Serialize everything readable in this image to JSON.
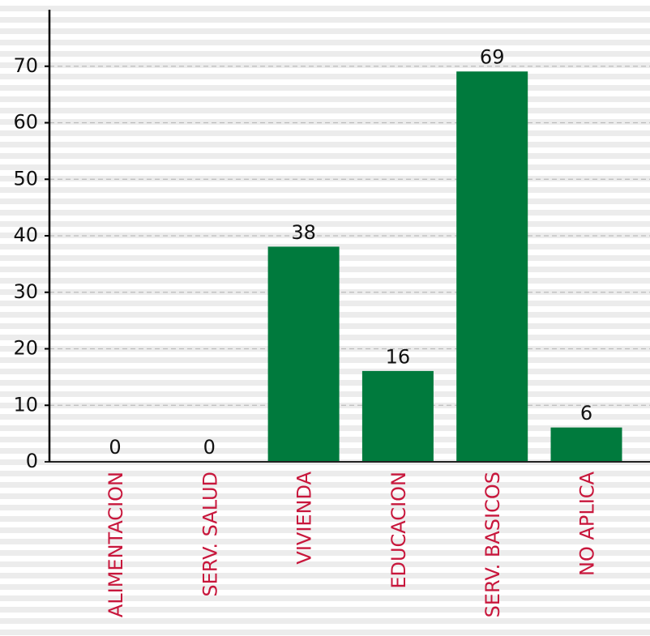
{
  "chart_data": {
    "type": "bar",
    "categories": [
      "ALIMENTACION",
      "SERV. SALUD",
      "VIVIENDA",
      "EDUCACION",
      "SERV. BASICOS",
      "NO APLICA"
    ],
    "values": [
      0,
      0,
      38,
      16,
      69,
      6
    ],
    "color": "#007a3d",
    "label_color": "#c8173c",
    "ylim": [
      0,
      80
    ],
    "yticks": [
      0,
      10,
      20,
      30,
      40,
      50,
      60,
      70
    ],
    "grid": true
  }
}
